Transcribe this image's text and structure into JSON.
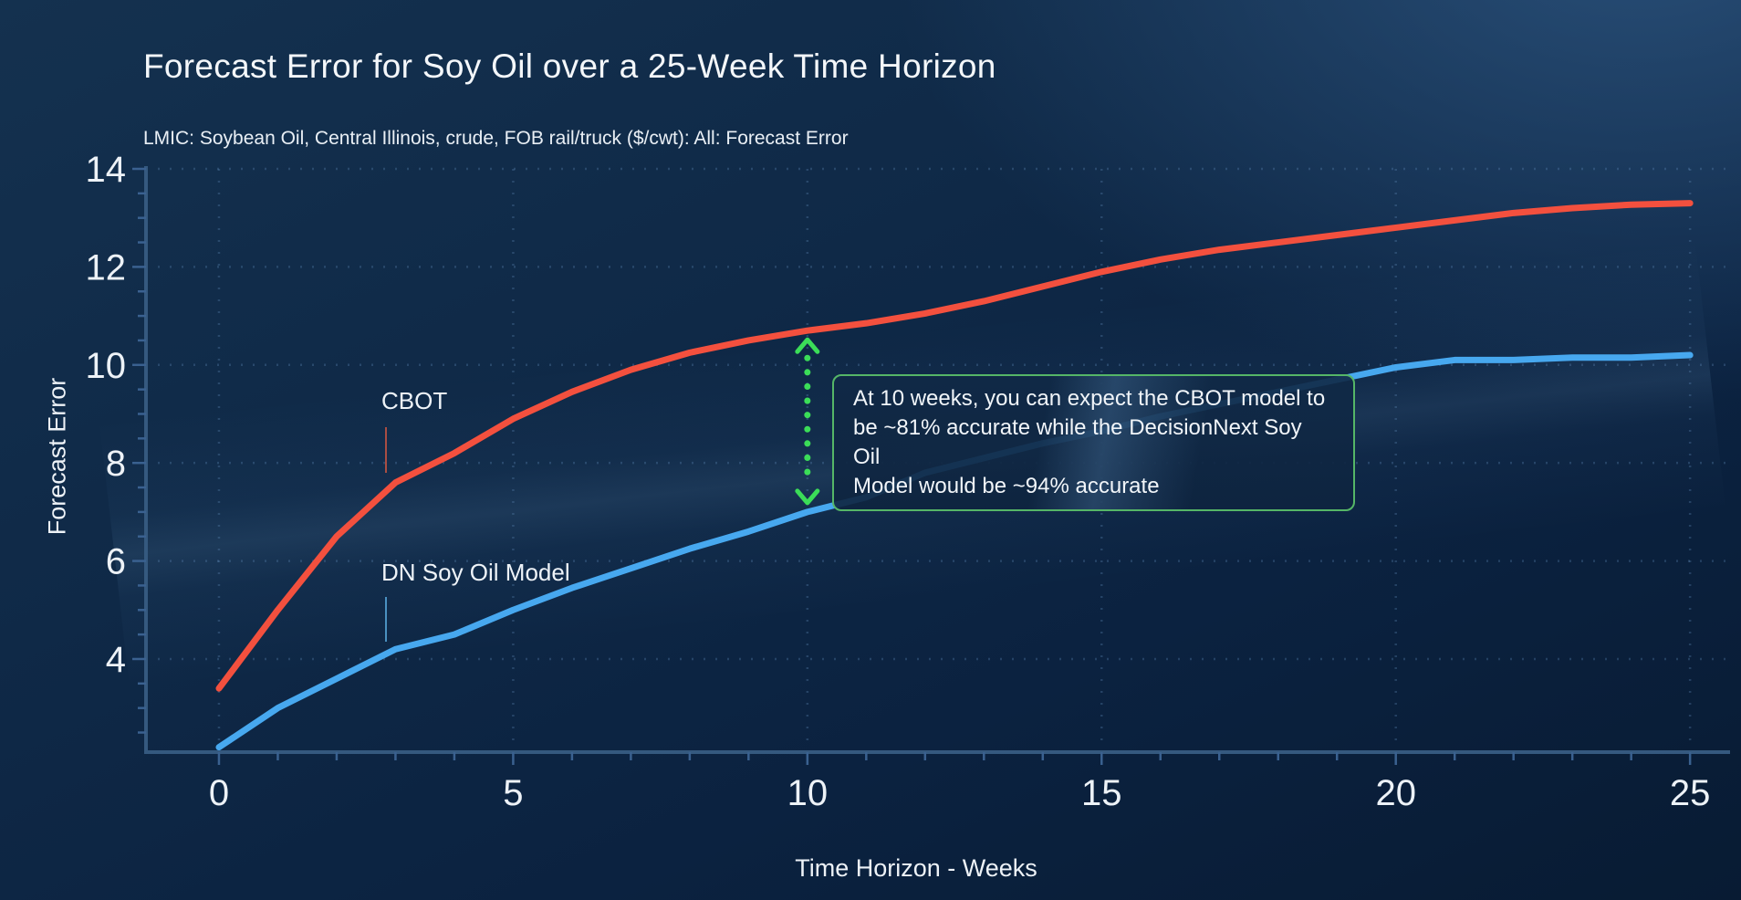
{
  "annotation": {
    "lines": [
      "At 10 weeks, you can expect the CBOT model to",
      "be ~81% accurate while the DecisionNext Soy Oil",
      "Model would be ~94% accurate"
    ],
    "arrow_week": 10,
    "arrow_color": "#3bdd58",
    "border_color": "#55b667"
  },
  "colors": {
    "background": "#0c2341",
    "axis": "#35597f",
    "grid": "#2c5078",
    "text": "#edf2f7",
    "cbot_line": "#f3503e",
    "dn_line": "#47a8ef"
  },
  "chart_data": {
    "type": "line",
    "title": "Forecast Error for Soy Oil over a 25-Week Time Horizon",
    "subtitle": "LMIC: Soybean Oil, Central Illinois, crude, FOB rail/truck ($/cwt): All: Forecast Error",
    "xlabel": "Time Horizon - Weeks",
    "ylabel": "Forecast Error",
    "x": [
      0,
      1,
      2,
      3,
      4,
      5,
      6,
      7,
      8,
      9,
      10,
      11,
      12,
      13,
      14,
      15,
      16,
      17,
      18,
      19,
      20,
      21,
      22,
      23,
      24,
      25
    ],
    "x_ticks": [
      0,
      5,
      10,
      15,
      20,
      25
    ],
    "y_ticks": [
      4,
      6,
      8,
      10,
      12,
      14
    ],
    "xlim": [
      -1.24,
      25.68
    ],
    "ylim": [
      2.1,
      14
    ],
    "grid": "dotted",
    "legend": "inline-labels",
    "series": [
      {
        "name": "CBOT",
        "color": "#f3503e",
        "values": [
          3.4,
          5.0,
          6.5,
          7.6,
          8.2,
          8.9,
          9.45,
          9.9,
          10.25,
          10.5,
          10.7,
          10.85,
          11.05,
          11.3,
          11.6,
          11.9,
          12.15,
          12.35,
          12.5,
          12.65,
          12.8,
          12.95,
          13.1,
          13.2,
          13.27,
          13.3
        ]
      },
      {
        "name": "DN Soy Oil Model",
        "color": "#47a8ef",
        "values": [
          2.2,
          3.0,
          3.6,
          4.2,
          4.5,
          5.0,
          5.45,
          5.85,
          6.25,
          6.6,
          7.0,
          7.3,
          7.8,
          8.1,
          8.4,
          8.65,
          8.95,
          9.2,
          9.45,
          9.7,
          9.95,
          10.1,
          10.1,
          10.15,
          10.15,
          10.2
        ]
      }
    ]
  }
}
